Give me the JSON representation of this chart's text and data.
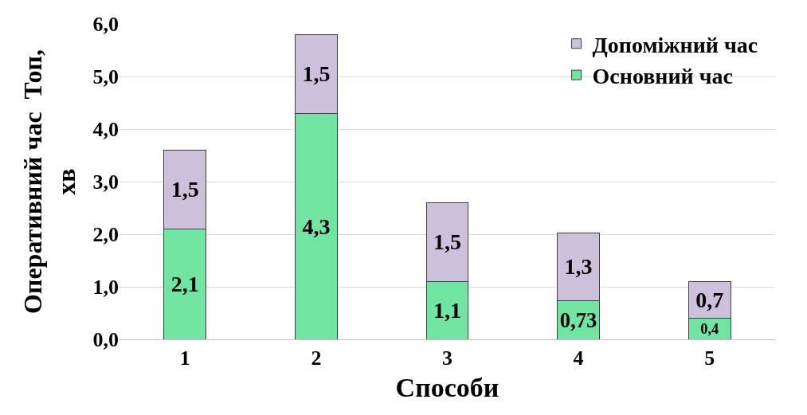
{
  "chart_data": {
    "type": "bar",
    "stacked": true,
    "xlabel": "Способи",
    "ylabel": "Оперативний час  Топ,\nхв",
    "categories": [
      "1",
      "2",
      "3",
      "4",
      "5"
    ],
    "series": [
      {
        "name": "Основний час",
        "color": "#70e4a0",
        "values": [
          2.1,
          4.3,
          1.1,
          0.73,
          0.4
        ],
        "value_labels": [
          "2,1",
          "4,3",
          "1,1",
          "0,73",
          "0,4"
        ]
      },
      {
        "name": "Допоміжний час",
        "color": "#ccc0da",
        "values": [
          1.5,
          1.5,
          1.5,
          1.3,
          0.7
        ],
        "value_labels": [
          "1,5",
          "1,5",
          "1,5",
          "1,3",
          "0,7"
        ]
      }
    ],
    "ylim": [
      0,
      6
    ],
    "yticks": [
      {
        "value": 0,
        "label": "0,0"
      },
      {
        "value": 1,
        "label": "1,0"
      },
      {
        "value": 2,
        "label": "2,0"
      },
      {
        "value": 3,
        "label": "3,0"
      },
      {
        "value": 4,
        "label": "4,0"
      },
      {
        "value": 5,
        "label": "5,0"
      },
      {
        "value": 6,
        "label": "6,0"
      }
    ],
    "grid": "y",
    "legend": "top right"
  }
}
